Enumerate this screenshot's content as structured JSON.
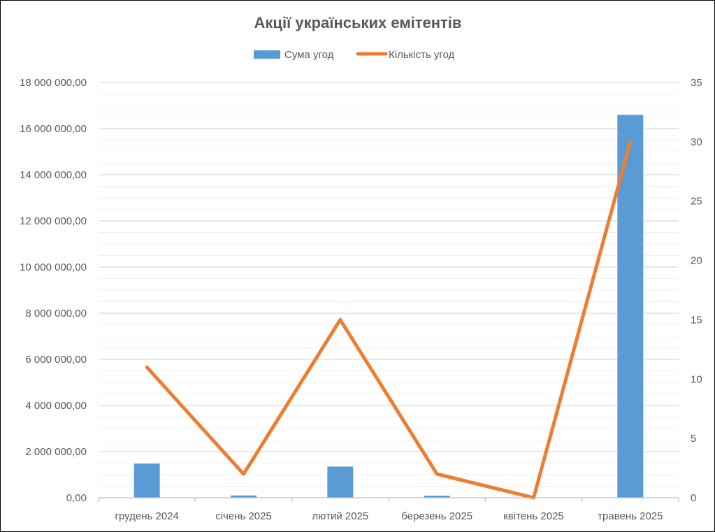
{
  "chart_data": {
    "type": "bar",
    "title": "Акції українських емітентів",
    "legend_position": "top",
    "grid": true,
    "categories": [
      "грудень 2024",
      "січень 2025",
      "лютий 2025",
      "березень 2025",
      "квітень 2025",
      "травень 2025"
    ],
    "series": [
      {
        "name": "Сума угод",
        "type": "bar",
        "axis": "left",
        "color": "#5B9BD5",
        "values": [
          1480000,
          100000,
          1350000,
          90000,
          0,
          16600000
        ]
      },
      {
        "name": "Кількість угод",
        "type": "line",
        "axis": "right",
        "color": "#ED7D31",
        "values": [
          11,
          2,
          15,
          2,
          0,
          30
        ]
      }
    ],
    "y_left": {
      "min": 0,
      "max": 18000000,
      "ticks": [
        "0,00",
        "2 000 000,00",
        "4 000 000,00",
        "6 000 000,00",
        "8 000 000,00",
        "10 000 000,00",
        "12 000 000,00",
        "14 000 000,00",
        "16 000 000,00",
        "18 000 000,00"
      ]
    },
    "y_right": {
      "min": 0,
      "max": 35,
      "ticks": [
        "0",
        "5",
        "10",
        "15",
        "20",
        "25",
        "30",
        "35"
      ]
    }
  }
}
